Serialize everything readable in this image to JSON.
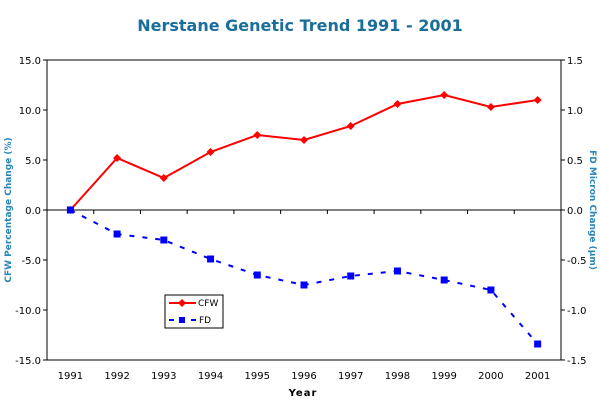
{
  "chart_data": {
    "type": "line",
    "title": "Nerstane Genetic Trend 1991 - 2001",
    "xlabel": "Year",
    "ylabel": "CFW Percentage Change (%)",
    "y2label": "FD Micron Change (µm)",
    "categories": [
      "1991",
      "1992",
      "1993",
      "1994",
      "1995",
      "1996",
      "1997",
      "1998",
      "1999",
      "2000",
      "2001"
    ],
    "ylim": [
      -15,
      15
    ],
    "yticks": [
      "15.0",
      "10.0",
      "5.0",
      "0.0",
      "-5.0",
      "-10.0",
      "-15.0"
    ],
    "y2lim": [
      -1.5,
      1.5
    ],
    "y2ticks": [
      "1.5",
      "1.0",
      "0.5",
      "0.0",
      "-0.5",
      "-1.0",
      "-1.5"
    ],
    "grid": false,
    "legend_position": "bottom-left",
    "series": [
      {
        "name": "CFW",
        "axis": "left",
        "color": "#ff0000",
        "style": "solid",
        "marker": "diamond",
        "values": [
          0.0,
          5.2,
          3.2,
          5.8,
          7.5,
          7.0,
          8.4,
          10.6,
          11.5,
          10.3,
          11.0
        ]
      },
      {
        "name": "FD",
        "axis": "right",
        "color": "#0000ff",
        "style": "dashed",
        "marker": "square",
        "values": [
          0.0,
          -0.24,
          -0.3,
          -0.49,
          -0.65,
          -0.75,
          -0.66,
          -0.61,
          -0.7,
          -0.8,
          -1.34
        ]
      }
    ]
  }
}
